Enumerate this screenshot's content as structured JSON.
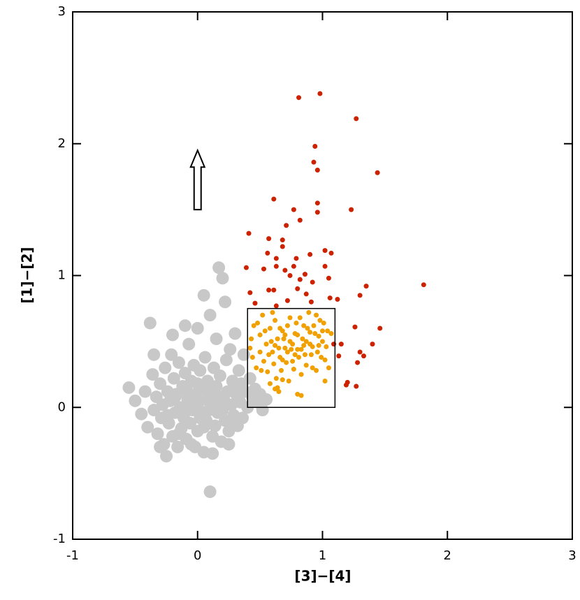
{
  "chart_data": {
    "type": "scatter",
    "xlabel": "[3]−[4]",
    "ylabel": "[1]−[2]",
    "xlim": [
      -1,
      3
    ],
    "ylim": [
      -1,
      3
    ],
    "xticks": [
      -1,
      0,
      1,
      2,
      3
    ],
    "yticks": [
      -1,
      0,
      1,
      2,
      3
    ],
    "box": {
      "x": [
        0.4,
        1.1
      ],
      "y": [
        0,
        0.75
      ]
    },
    "arrow": {
      "x": 0,
      "y": [
        1.5,
        1.95
      ]
    },
    "series": [
      {
        "color": "#c8c8c8",
        "x": [
          -0.55,
          -0.5,
          -0.45,
          -0.42,
          -0.4,
          -0.38,
          -0.36,
          -0.35,
          -0.33,
          -0.32,
          -0.3,
          -0.29,
          -0.28,
          -0.27,
          -0.26,
          -0.25,
          -0.24,
          -0.23,
          -0.22,
          -0.21,
          -0.2,
          -0.19,
          -0.18,
          -0.17,
          -0.16,
          -0.15,
          -0.14,
          -0.13,
          -0.12,
          -0.11,
          -0.1,
          -0.09,
          -0.08,
          -0.07,
          -0.06,
          -0.05,
          -0.04,
          -0.03,
          -0.02,
          -0.01,
          0.0,
          0.01,
          0.02,
          0.03,
          0.04,
          0.05,
          0.06,
          0.07,
          0.08,
          0.09,
          0.1,
          0.11,
          0.12,
          0.13,
          0.14,
          0.15,
          0.16,
          0.17,
          0.18,
          0.19,
          0.2,
          0.21,
          0.22,
          0.23,
          0.24,
          0.25,
          0.26,
          0.27,
          0.28,
          0.29,
          0.3,
          0.31,
          0.32,
          0.33,
          0.34,
          0.35,
          0.36,
          0.37,
          0.38,
          0.4,
          0.42,
          0.44,
          0.46,
          0.48,
          0.5,
          0.52,
          0.55,
          -0.35,
          -0.2,
          0.0,
          0.1,
          0.05,
          -0.1,
          0.22,
          0.15,
          -0.3,
          -0.05,
          0.12,
          0.25,
          -0.15,
          0.05,
          -0.08,
          0.08,
          -0.02,
          0.14,
          0.02,
          -0.12,
          0.18,
          -0.06,
          0.06,
          0.1,
          -0.18,
          0.2,
          0.0,
          -0.24,
          0.28,
          0.32
        ],
        "values": [
          0.15,
          0.05,
          -0.05,
          0.12,
          -0.15,
          0.64,
          0.25,
          -0.02,
          0.08,
          -0.2,
          0.18,
          -0.08,
          0.02,
          -0.28,
          0.3,
          -0.37,
          0.12,
          -0.12,
          0.05,
          0.4,
          -0.22,
          0.22,
          -0.04,
          0.1,
          -0.3,
          0.34,
          0.0,
          -0.16,
          0.16,
          -0.08,
          0.26,
          -0.24,
          0.06,
          0.48,
          -0.12,
          0.2,
          -0.02,
          0.32,
          -0.3,
          0.1,
          -0.18,
          0.04,
          0.28,
          -0.06,
          0.14,
          -0.34,
          0.38,
          -0.1,
          0.2,
          -0.02,
          -0.64,
          0.08,
          -0.22,
          0.3,
          -0.14,
          0.16,
          -0.04,
          1.06,
          0.24,
          -0.26,
          0.98,
          0.06,
          -0.1,
          0.36,
          0.12,
          -0.18,
          0.44,
          0.02,
          0.2,
          -0.06,
          0.56,
          0.1,
          -0.14,
          0.28,
          0.04,
          0.18,
          -0.08,
          0.4,
          0.12,
          0.0,
          0.22,
          0.08,
          0.14,
          0.04,
          0.1,
          -0.02,
          0.06,
          0.4,
          0.55,
          0.6,
          0.7,
          0.85,
          0.62,
          0.8,
          0.52,
          -0.3,
          -0.28,
          -0.35,
          -0.28,
          -0.2,
          -0.15,
          0.12,
          0.06,
          0.0,
          0.02,
          -0.08,
          -0.02,
          0.08,
          0.04,
          -0.04,
          0.14,
          0.08,
          -0.02,
          0.18,
          -0.06,
          -0.12,
          0.14
        ]
      },
      {
        "color": "#f0a000",
        "x": [
          0.45,
          0.5,
          0.52,
          0.55,
          0.58,
          0.6,
          0.62,
          0.64,
          0.66,
          0.68,
          0.7,
          0.72,
          0.74,
          0.76,
          0.78,
          0.8,
          0.82,
          0.84,
          0.86,
          0.88,
          0.9,
          0.92,
          0.94,
          0.96,
          0.98,
          1.0,
          1.02,
          1.04,
          0.42,
          0.44,
          0.47,
          0.5,
          0.53,
          0.56,
          0.59,
          0.61,
          0.63,
          0.65,
          0.67,
          0.69,
          0.71,
          0.73,
          0.75,
          0.77,
          0.79,
          0.81,
          0.83,
          0.85,
          0.87,
          0.89,
          0.91,
          0.93,
          0.95,
          0.97,
          0.99,
          1.01,
          1.03,
          1.05,
          1.07,
          0.43,
          0.48,
          0.51,
          0.54,
          0.57,
          0.6,
          0.62,
          0.66,
          0.68,
          0.7,
          0.72,
          0.74,
          0.76,
          0.78,
          0.8,
          0.83,
          0.85,
          0.87,
          0.9,
          0.92,
          0.95,
          0.97,
          1.0,
          1.02,
          0.58,
          0.62,
          0.65,
          0.8,
          0.83,
          0.64,
          0.68
        ],
        "values": [
          0.62,
          0.55,
          0.7,
          0.48,
          0.6,
          0.42,
          0.66,
          0.52,
          0.38,
          0.58,
          0.45,
          0.62,
          0.5,
          0.35,
          0.56,
          0.44,
          0.68,
          0.52,
          0.4,
          0.6,
          0.48,
          0.3,
          0.56,
          0.42,
          0.66,
          0.5,
          0.36,
          0.58,
          0.45,
          0.38,
          0.3,
          0.42,
          0.35,
          0.27,
          0.5,
          0.33,
          0.22,
          0.45,
          0.28,
          0.52,
          0.34,
          0.2,
          0.44,
          0.29,
          0.64,
          0.38,
          0.25,
          0.47,
          0.32,
          0.72,
          0.4,
          0.62,
          0.28,
          0.54,
          0.38,
          0.64,
          0.46,
          0.3,
          0.56,
          0.52,
          0.64,
          0.28,
          0.58,
          0.4,
          0.72,
          0.47,
          0.6,
          0.36,
          0.55,
          0.42,
          0.68,
          0.48,
          0.4,
          0.55,
          0.44,
          0.62,
          0.5,
          0.57,
          0.46,
          0.7,
          0.47,
          0.58,
          0.2,
          0.18,
          0.14,
          0.12,
          0.1,
          0.09,
          0.15,
          0.21
        ]
      },
      {
        "color": "#cc2200",
        "x": [
          0.81,
          0.98,
          1.27,
          0.94,
          0.93,
          0.96,
          1.44,
          0.61,
          0.96,
          0.96,
          0.77,
          1.23,
          0.82,
          0.71,
          0.41,
          0.57,
          0.68,
          0.68,
          1.02,
          1.07,
          0.56,
          0.63,
          0.79,
          0.77,
          0.9,
          0.53,
          0.63,
          0.39,
          0.7,
          1.02,
          0.86,
          0.74,
          0.82,
          0.92,
          1.05,
          1.35,
          1.81,
          0.61,
          0.57,
          0.42,
          0.8,
          0.87,
          1.3,
          1.06,
          1.12,
          0.72,
          0.46,
          0.63,
          0.91,
          1.26,
          1.46,
          1.4,
          1.15,
          1.09,
          1.3,
          1.33,
          1.13,
          1.28,
          1.2,
          1.27,
          1.19
        ],
        "values": [
          2.35,
          2.38,
          2.19,
          1.98,
          1.86,
          1.8,
          1.78,
          1.58,
          1.55,
          1.48,
          1.5,
          1.5,
          1.42,
          1.38,
          1.32,
          1.28,
          1.27,
          1.22,
          1.19,
          1.17,
          1.17,
          1.13,
          1.13,
          1.07,
          1.16,
          1.05,
          1.07,
          1.06,
          1.04,
          1.07,
          1.01,
          1.0,
          0.97,
          0.95,
          0.98,
          0.92,
          0.93,
          0.89,
          0.89,
          0.87,
          0.9,
          0.86,
          0.85,
          0.83,
          0.82,
          0.81,
          0.79,
          0.77,
          0.8,
          0.61,
          0.6,
          0.48,
          0.48,
          0.48,
          0.42,
          0.39,
          0.39,
          0.34,
          0.19,
          0.16,
          0.17
        ]
      }
    ]
  }
}
